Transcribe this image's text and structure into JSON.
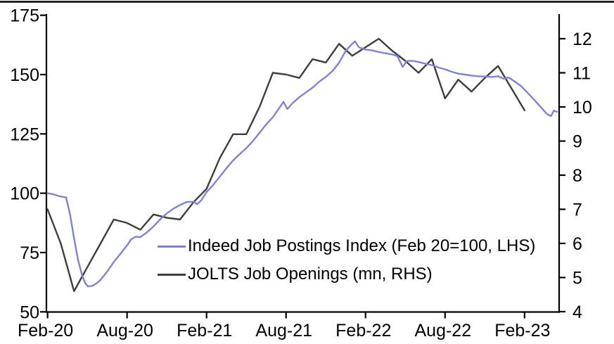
{
  "chart_data": {
    "type": "line",
    "title": "",
    "dual_axis": true,
    "background_color": "#ffffff",
    "axis_color": "#000000",
    "grid": false,
    "x_axis": {
      "tick_labels": [
        "Feb-20",
        "Aug-20",
        "Feb-21",
        "Aug-21",
        "Feb-22",
        "Aug-22",
        "Feb-23"
      ],
      "months_between_ticks": 6,
      "unit": "month"
    },
    "left_axis": {
      "label": "Indeed Job Postings Index (Feb 20=100)",
      "min": 50,
      "max": 175,
      "ticks": [
        50,
        75,
        100,
        125,
        150,
        175
      ]
    },
    "right_axis": {
      "label": "JOLTS Job Openings (mn)",
      "min": 4,
      "max": 12,
      "ticks": [
        4,
        5,
        6,
        7,
        8,
        9,
        10,
        11,
        12
      ]
    },
    "legend_position": "inside-bottom-center",
    "series": [
      {
        "name": "Indeed Job Postings Index (Feb 20=100, LHS)",
        "axis": "left",
        "color": "#8080D8",
        "points_month_offset_from_feb2020_and_value": [
          [
            0,
            100
          ],
          [
            0.4,
            99.6
          ],
          [
            0.9,
            98.7
          ],
          [
            1.4,
            98.2
          ],
          [
            1.7,
            91
          ],
          [
            2,
            81
          ],
          [
            2.3,
            72
          ],
          [
            2.6,
            65.5
          ],
          [
            2.85,
            62
          ],
          [
            3.05,
            60.7
          ],
          [
            3.4,
            61
          ],
          [
            3.7,
            62
          ],
          [
            4,
            63.5
          ],
          [
            4.5,
            67
          ],
          [
            5,
            71
          ],
          [
            5.5,
            74.5
          ],
          [
            6,
            78
          ],
          [
            6.3,
            80.5
          ],
          [
            6.65,
            81.7
          ],
          [
            7,
            81.5
          ],
          [
            7.5,
            83.5
          ],
          [
            8,
            86
          ],
          [
            8.5,
            89
          ],
          [
            9,
            91.5
          ],
          [
            9.5,
            93.5
          ],
          [
            10,
            95
          ],
          [
            10.5,
            96.3
          ],
          [
            11,
            96.4
          ],
          [
            11.3,
            95.4
          ],
          [
            11.6,
            97
          ],
          [
            12,
            100.5
          ],
          [
            12.5,
            103.5
          ],
          [
            13,
            107
          ],
          [
            13.5,
            110.5
          ],
          [
            14,
            113.8
          ],
          [
            14.5,
            116.5
          ],
          [
            15,
            119
          ],
          [
            15.5,
            122
          ],
          [
            16,
            125.5
          ],
          [
            16.5,
            129
          ],
          [
            17,
            132
          ],
          [
            17.5,
            136
          ],
          [
            17.8,
            138.5
          ],
          [
            18.1,
            135.5
          ],
          [
            18.5,
            138
          ],
          [
            19,
            140.5
          ],
          [
            19.5,
            142.5
          ],
          [
            20,
            144.5
          ],
          [
            20.5,
            147
          ],
          [
            21,
            149
          ],
          [
            21.5,
            151.5
          ],
          [
            22,
            155
          ],
          [
            22.5,
            160
          ],
          [
            23,
            163
          ],
          [
            23.2,
            164
          ],
          [
            23.5,
            161.5
          ],
          [
            24,
            160.5
          ],
          [
            24.5,
            160.2
          ],
          [
            25,
            159.5
          ],
          [
            25.5,
            159
          ],
          [
            26,
            158.5
          ],
          [
            26.4,
            157.8
          ],
          [
            26.8,
            153.2
          ],
          [
            27.1,
            155.7
          ],
          [
            27.5,
            155.8
          ],
          [
            28,
            155.3
          ],
          [
            28.5,
            154.6
          ],
          [
            29,
            154
          ],
          [
            29.5,
            153
          ],
          [
            30,
            152.2
          ],
          [
            30.5,
            151.2
          ],
          [
            31,
            150.4
          ],
          [
            31.5,
            150
          ],
          [
            32,
            149.6
          ],
          [
            32.5,
            149.3
          ],
          [
            33,
            149.2
          ],
          [
            33.5,
            149
          ],
          [
            34,
            149.3
          ],
          [
            34.4,
            148.3
          ],
          [
            34.8,
            148.8
          ],
          [
            35.2,
            147.3
          ],
          [
            35.7,
            145.3
          ],
          [
            36.2,
            142.5
          ],
          [
            36.7,
            139.5
          ],
          [
            37.2,
            136.5
          ],
          [
            37.7,
            133.3
          ],
          [
            38,
            132.5
          ],
          [
            38.2,
            134.8
          ],
          [
            38.45,
            134.3
          ]
        ]
      },
      {
        "name": "JOLTS Job Openings (mn, RHS)",
        "axis": "right",
        "color": "#3D3D3D",
        "months": [
          "Feb-20",
          "Mar-20",
          "Apr-20",
          "May-20",
          "Jun-20",
          "Jul-20",
          "Aug-20",
          "Sep-20",
          "Oct-20",
          "Nov-20",
          "Dec-20",
          "Jan-21",
          "Feb-21",
          "Mar-21",
          "Apr-21",
          "May-21",
          "Jun-21",
          "Jul-21",
          "Aug-21",
          "Sep-21",
          "Oct-21",
          "Nov-21",
          "Dec-21",
          "Jan-22",
          "Feb-22",
          "Mar-22",
          "Apr-22",
          "May-22",
          "Jun-22",
          "Jul-22",
          "Aug-22",
          "Sep-22",
          "Oct-22",
          "Nov-22",
          "Dec-22",
          "Jan-23",
          "Feb-23"
        ],
        "values": [
          7.0,
          6.0,
          4.6,
          5.3,
          6.0,
          6.7,
          6.6,
          6.4,
          6.85,
          6.75,
          6.7,
          7.2,
          7.6,
          8.5,
          9.2,
          9.2,
          10.0,
          11.0,
          10.95,
          10.85,
          11.4,
          11.3,
          11.85,
          11.5,
          11.75,
          12.0,
          11.65,
          11.35,
          11.0,
          11.4,
          10.25,
          10.8,
          10.45,
          10.85,
          11.2,
          10.55,
          9.9
        ]
      }
    ]
  }
}
